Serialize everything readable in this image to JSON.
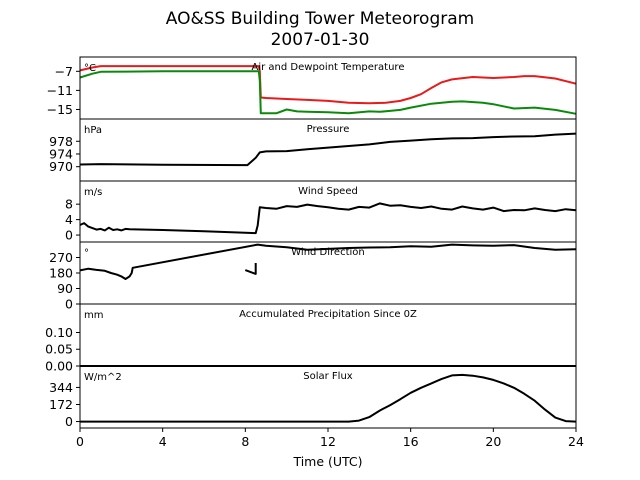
{
  "title": "AO&SS Building Tower Meteorogram",
  "subtitle": "2007-01-30",
  "xlabel": "Time (UTC)",
  "chart_data": {
    "type": "line",
    "title": "AO&SS Building Tower Meteorogram",
    "subtitle": "2007-01-30",
    "xlabel": "Time (UTC)",
    "xlim": [
      0,
      24
    ],
    "xticks": [
      0,
      4,
      8,
      12,
      16,
      20,
      24
    ],
    "panels": [
      {
        "title": "Air and Dewpoint Temperature",
        "unit": "°C",
        "ylim": [
          -17,
          -4
        ],
        "yticks": [
          -7,
          -11,
          -15
        ],
        "yticklabels": [
          "−7",
          "−11",
          "−15"
        ],
        "series": [
          {
            "color": "#e81b1b",
            "points": [
              [
                0,
                -6.8
              ],
              [
                0.6,
                -6.2
              ],
              [
                1,
                -5.9
              ],
              [
                4,
                -5.9
              ],
              [
                8,
                -5.9
              ],
              [
                8.65,
                -5.9
              ],
              [
                8.7,
                -7
              ],
              [
                8.75,
                -12.5
              ],
              [
                9,
                -12.6
              ],
              [
                10,
                -12.8
              ],
              [
                11,
                -13
              ],
              [
                12,
                -13.2
              ],
              [
                13,
                -13.6
              ],
              [
                14,
                -13.7
              ],
              [
                14.8,
                -13.6
              ],
              [
                15.5,
                -13.2
              ],
              [
                16,
                -12.6
              ],
              [
                16.5,
                -11.8
              ],
              [
                17,
                -10.5
              ],
              [
                17.5,
                -9.3
              ],
              [
                18,
                -8.7
              ],
              [
                19,
                -8.2
              ],
              [
                20,
                -8.4
              ],
              [
                21,
                -8.2
              ],
              [
                21.5,
                -8
              ],
              [
                22,
                -8
              ],
              [
                23,
                -8.5
              ],
              [
                24,
                -9.6
              ]
            ]
          },
          {
            "color": "#0a8a0a",
            "points": [
              [
                0,
                -8.3
              ],
              [
                0.6,
                -7.5
              ],
              [
                1,
                -7.1
              ],
              [
                4,
                -7
              ],
              [
                8,
                -7
              ],
              [
                8.65,
                -7
              ],
              [
                8.7,
                -9
              ],
              [
                8.75,
                -15.8
              ],
              [
                9.5,
                -15.8
              ],
              [
                10,
                -15
              ],
              [
                10.5,
                -15.4
              ],
              [
                11,
                -15.5
              ],
              [
                12,
                -15.6
              ],
              [
                13,
                -15.8
              ],
              [
                14,
                -15.4
              ],
              [
                14.5,
                -15.5
              ],
              [
                15,
                -15.3
              ],
              [
                15.5,
                -15.1
              ],
              [
                16,
                -14.6
              ],
              [
                17,
                -13.8
              ],
              [
                18,
                -13.4
              ],
              [
                18.5,
                -13.3
              ],
              [
                19.5,
                -13.6
              ],
              [
                20,
                -13.9
              ],
              [
                21,
                -14.8
              ],
              [
                22,
                -14.6
              ],
              [
                23,
                -15.1
              ],
              [
                24,
                -15.9
              ]
            ]
          }
        ]
      },
      {
        "title": "Pressure",
        "unit": "hPa",
        "ylim": [
          965.5,
          985
        ],
        "yticks": [
          978,
          974,
          970
        ],
        "yticklabels": [
          "978",
          "974",
          "970"
        ],
        "series": [
          {
            "color": "#000000",
            "points": [
              [
                0,
                970.7
              ],
              [
                1,
                970.8
              ],
              [
                4,
                970.6
              ],
              [
                8,
                970.5
              ],
              [
                8.1,
                970.5
              ],
              [
                8.5,
                972.8
              ],
              [
                8.7,
                974.5
              ],
              [
                9,
                974.8
              ],
              [
                10,
                974.9
              ],
              [
                11,
                975.5
              ],
              [
                12,
                976
              ],
              [
                13,
                976.5
              ],
              [
                14,
                977
              ],
              [
                15,
                977.8
              ],
              [
                16,
                978.2
              ],
              [
                17,
                978.6
              ],
              [
                18,
                978.9
              ],
              [
                19,
                979
              ],
              [
                20,
                979.3
              ],
              [
                21,
                979.5
              ],
              [
                22,
                979.6
              ],
              [
                23,
                980.1
              ],
              [
                24,
                980.4
              ]
            ]
          }
        ]
      },
      {
        "title": "Wind Speed",
        "unit": "m/s",
        "ylim": [
          -1.8,
          14
        ],
        "yticks": [
          8,
          4,
          0
        ],
        "yticklabels": [
          "8",
          "4",
          "0"
        ],
        "series": [
          {
            "color": "#000000",
            "points": [
              [
                0,
                2.6
              ],
              [
                0.2,
                3.1
              ],
              [
                0.4,
                2.2
              ],
              [
                0.6,
                1.8
              ],
              [
                0.8,
                1.4
              ],
              [
                1,
                1.6
              ],
              [
                1.2,
                1.2
              ],
              [
                1.4,
                1.9
              ],
              [
                1.6,
                1.3
              ],
              [
                1.8,
                1.5
              ],
              [
                2,
                1.2
              ],
              [
                2.2,
                1.6
              ],
              [
                2.4,
                1.5
              ],
              [
                4,
                1.3
              ],
              [
                6,
                1
              ],
              [
                8,
                0.6
              ],
              [
                8.5,
                0.5
              ],
              [
                8.6,
                2.5
              ],
              [
                8.7,
                7.2
              ],
              [
                9,
                7
              ],
              [
                9.5,
                6.8
              ],
              [
                10,
                7.5
              ],
              [
                10.5,
                7.3
              ],
              [
                11,
                7.9
              ],
              [
                11.5,
                7.5
              ],
              [
                12,
                7.2
              ],
              [
                12.5,
                6.8
              ],
              [
                13,
                6.6
              ],
              [
                13.5,
                7.3
              ],
              [
                14,
                7.1
              ],
              [
                14.5,
                8.2
              ],
              [
                15,
                7.6
              ],
              [
                15.5,
                7.7
              ],
              [
                16,
                7.3
              ],
              [
                16.5,
                7
              ],
              [
                17,
                7.4
              ],
              [
                17.5,
                6.8
              ],
              [
                18,
                6.6
              ],
              [
                18.5,
                7.4
              ],
              [
                19,
                6.9
              ],
              [
                19.5,
                6.6
              ],
              [
                20,
                7.1
              ],
              [
                20.5,
                6.2
              ],
              [
                21,
                6.5
              ],
              [
                21.5,
                6.4
              ],
              [
                22,
                6.9
              ],
              [
                22.5,
                6.5
              ],
              [
                23,
                6.2
              ],
              [
                23.5,
                6.7
              ],
              [
                24,
                6.4
              ]
            ]
          }
        ]
      },
      {
        "title": "Wind Direction",
        "unit": "°",
        "ylim": [
          0,
          360
        ],
        "yticks": [
          270,
          180,
          90,
          0
        ],
        "yticklabels": [
          "270",
          "180",
          "90",
          "0"
        ],
        "series": [
          {
            "color": "#000000",
            "points": [
              [
                0,
                195
              ],
              [
                0.4,
                205
              ],
              [
                0.8,
                198
              ],
              [
                1.2,
                193
              ],
              [
                1.5,
                180
              ],
              [
                1.8,
                170
              ],
              [
                2,
                160
              ],
              [
                2.2,
                145
              ],
              [
                2.4,
                160
              ],
              [
                2.5,
                180
              ],
              [
                2.55,
                210
              ],
              [
                8.6,
                345
              ],
              [
                9,
                338
              ],
              [
                10,
                330
              ],
              [
                11,
                315
              ],
              [
                12,
                320
              ],
              [
                13,
                325
              ],
              [
                14,
                328
              ],
              [
                15,
                330
              ],
              [
                16,
                335
              ],
              [
                17,
                332
              ],
              [
                18,
                345
              ],
              [
                19,
                340
              ],
              [
                20,
                338
              ],
              [
                21,
                342
              ],
              [
                22,
                325
              ],
              [
                23,
                315
              ],
              [
                24,
                318
              ]
            ]
          },
          {
            "color": "#000000",
            "points": [
              [
                8,
                197
              ],
              [
                8.5,
                175
              ],
              [
                8.5,
                205
              ],
              [
                8.5,
                238
              ]
            ]
          }
        ]
      },
      {
        "title": "Accumulated Precipitation Since 0Z",
        "unit": "mm",
        "ylim": [
          0,
          0.185
        ],
        "yticks": [
          0.1,
          0.05,
          0.0
        ],
        "yticklabels": [
          "0.10",
          "0.05",
          "0.00"
        ],
        "series": [
          {
            "color": "#000000",
            "points": [
              [
                0,
                0
              ],
              [
                24,
                0
              ]
            ]
          }
        ]
      },
      {
        "title": "Solar Flux",
        "unit": "W/m^2",
        "ylim": [
          -65,
          560
        ],
        "yticks": [
          344,
          172,
          0
        ],
        "yticklabels": [
          "344",
          "172",
          "0"
        ],
        "series": [
          {
            "color": "#000000",
            "points": [
              [
                0,
                0
              ],
              [
                13,
                0
              ],
              [
                13.5,
                10
              ],
              [
                14,
                45
              ],
              [
                14.5,
                110
              ],
              [
                15,
                165
              ],
              [
                15.5,
                225
              ],
              [
                16,
                290
              ],
              [
                16.5,
                340
              ],
              [
                17,
                385
              ],
              [
                17.5,
                430
              ],
              [
                18,
                465
              ],
              [
                18.5,
                470
              ],
              [
                19,
                462
              ],
              [
                19.5,
                445
              ],
              [
                20,
                420
              ],
              [
                20.5,
                385
              ],
              [
                21,
                340
              ],
              [
                21.5,
                280
              ],
              [
                22,
                210
              ],
              [
                22.5,
                120
              ],
              [
                23,
                40
              ],
              [
                23.5,
                5
              ],
              [
                24,
                0
              ]
            ]
          }
        ]
      }
    ]
  }
}
